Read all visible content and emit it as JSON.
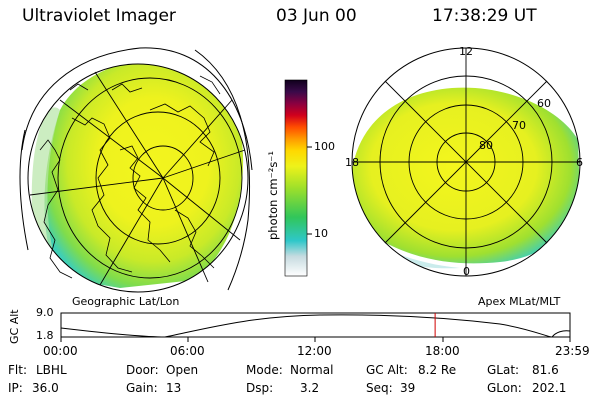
{
  "header": {
    "title": "Ultraviolet Imager",
    "date": "03 Jun 00",
    "time": "17:38:29 UT"
  },
  "colorbar": {
    "unit_label": "photon cm⁻²s⁻¹",
    "ticks": [
      "100",
      "10"
    ],
    "scale": "log"
  },
  "left_panel": {
    "caption": "Geographic Lat/Lon"
  },
  "right_panel": {
    "caption": "Apex MLat/MLT",
    "mlt_labels": [
      "12",
      "18",
      "6",
      "0"
    ],
    "mlat_labels": [
      "60",
      "70",
      "80"
    ]
  },
  "altitude_plot": {
    "ylabel": "GC Alt",
    "y_ticks": [
      "9.0",
      "1.8"
    ],
    "x_ticks": [
      "00:00",
      "06:00",
      "12:00",
      "18:00",
      "23:59"
    ],
    "current_time_marker_hours": 17.64,
    "marker_color": "#d00000"
  },
  "status": {
    "filter_label": "Flt:",
    "filter_value": "LBHL",
    "ip_label": "IP:",
    "ip_value": "36.0",
    "door_label": "Door:",
    "door_value": "Open",
    "gain_label": "Gain:",
    "gain_value": "13",
    "mode_label": "Mode:",
    "mode_value": "Normal",
    "dsp_label": "Dsp:",
    "dsp_value": "3.2",
    "gcalt_label": "GC Alt:",
    "gcalt_value": "8.2 Re",
    "seq_label": "Seq:",
    "seq_value": "39",
    "glat_label": "GLat:",
    "glat_value": "81.6",
    "glon_label": "GLon:",
    "glon_value": "202.1"
  }
}
